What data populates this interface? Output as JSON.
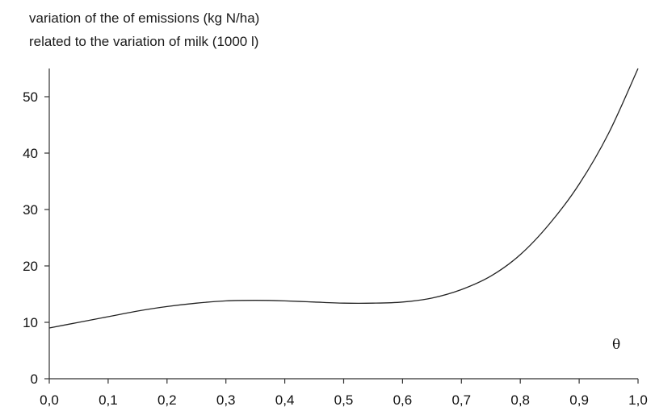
{
  "chart_data": {
    "type": "line",
    "ylabel_lines": [
      "variation of the of emissions (kg N/ha)",
      "related to the variation of milk (1000 l)"
    ],
    "xlabel": "θ",
    "xlim": [
      0.0,
      1.0
    ],
    "ylim": [
      0,
      55
    ],
    "x_ticks": [
      0.0,
      0.1,
      0.2,
      0.3,
      0.4,
      0.5,
      0.6,
      0.7,
      0.8,
      0.9,
      1.0
    ],
    "x_tick_labels": [
      "0,0",
      "0,1",
      "0,2",
      "0,3",
      "0,4",
      "0,5",
      "0,6",
      "0,7",
      "0,8",
      "0,9",
      "1,0"
    ],
    "y_ticks": [
      0,
      10,
      20,
      30,
      40,
      50
    ],
    "y_tick_labels": [
      "0",
      "10",
      "20",
      "30",
      "40",
      "50"
    ],
    "grid": false,
    "line_color": "#222222",
    "series": [
      {
        "x": [
          0.0,
          0.05,
          0.1,
          0.15,
          0.2,
          0.25,
          0.3,
          0.35,
          0.4,
          0.45,
          0.5,
          0.55,
          0.6,
          0.65,
          0.7,
          0.75,
          0.8,
          0.85,
          0.9,
          0.95,
          1.0
        ],
        "y": [
          9.0,
          10.0,
          11.0,
          12.0,
          12.8,
          13.4,
          13.8,
          13.9,
          13.8,
          13.6,
          13.4,
          13.4,
          13.6,
          14.3,
          15.8,
          18.2,
          22.0,
          27.5,
          34.5,
          43.5,
          55.0
        ]
      }
    ]
  }
}
